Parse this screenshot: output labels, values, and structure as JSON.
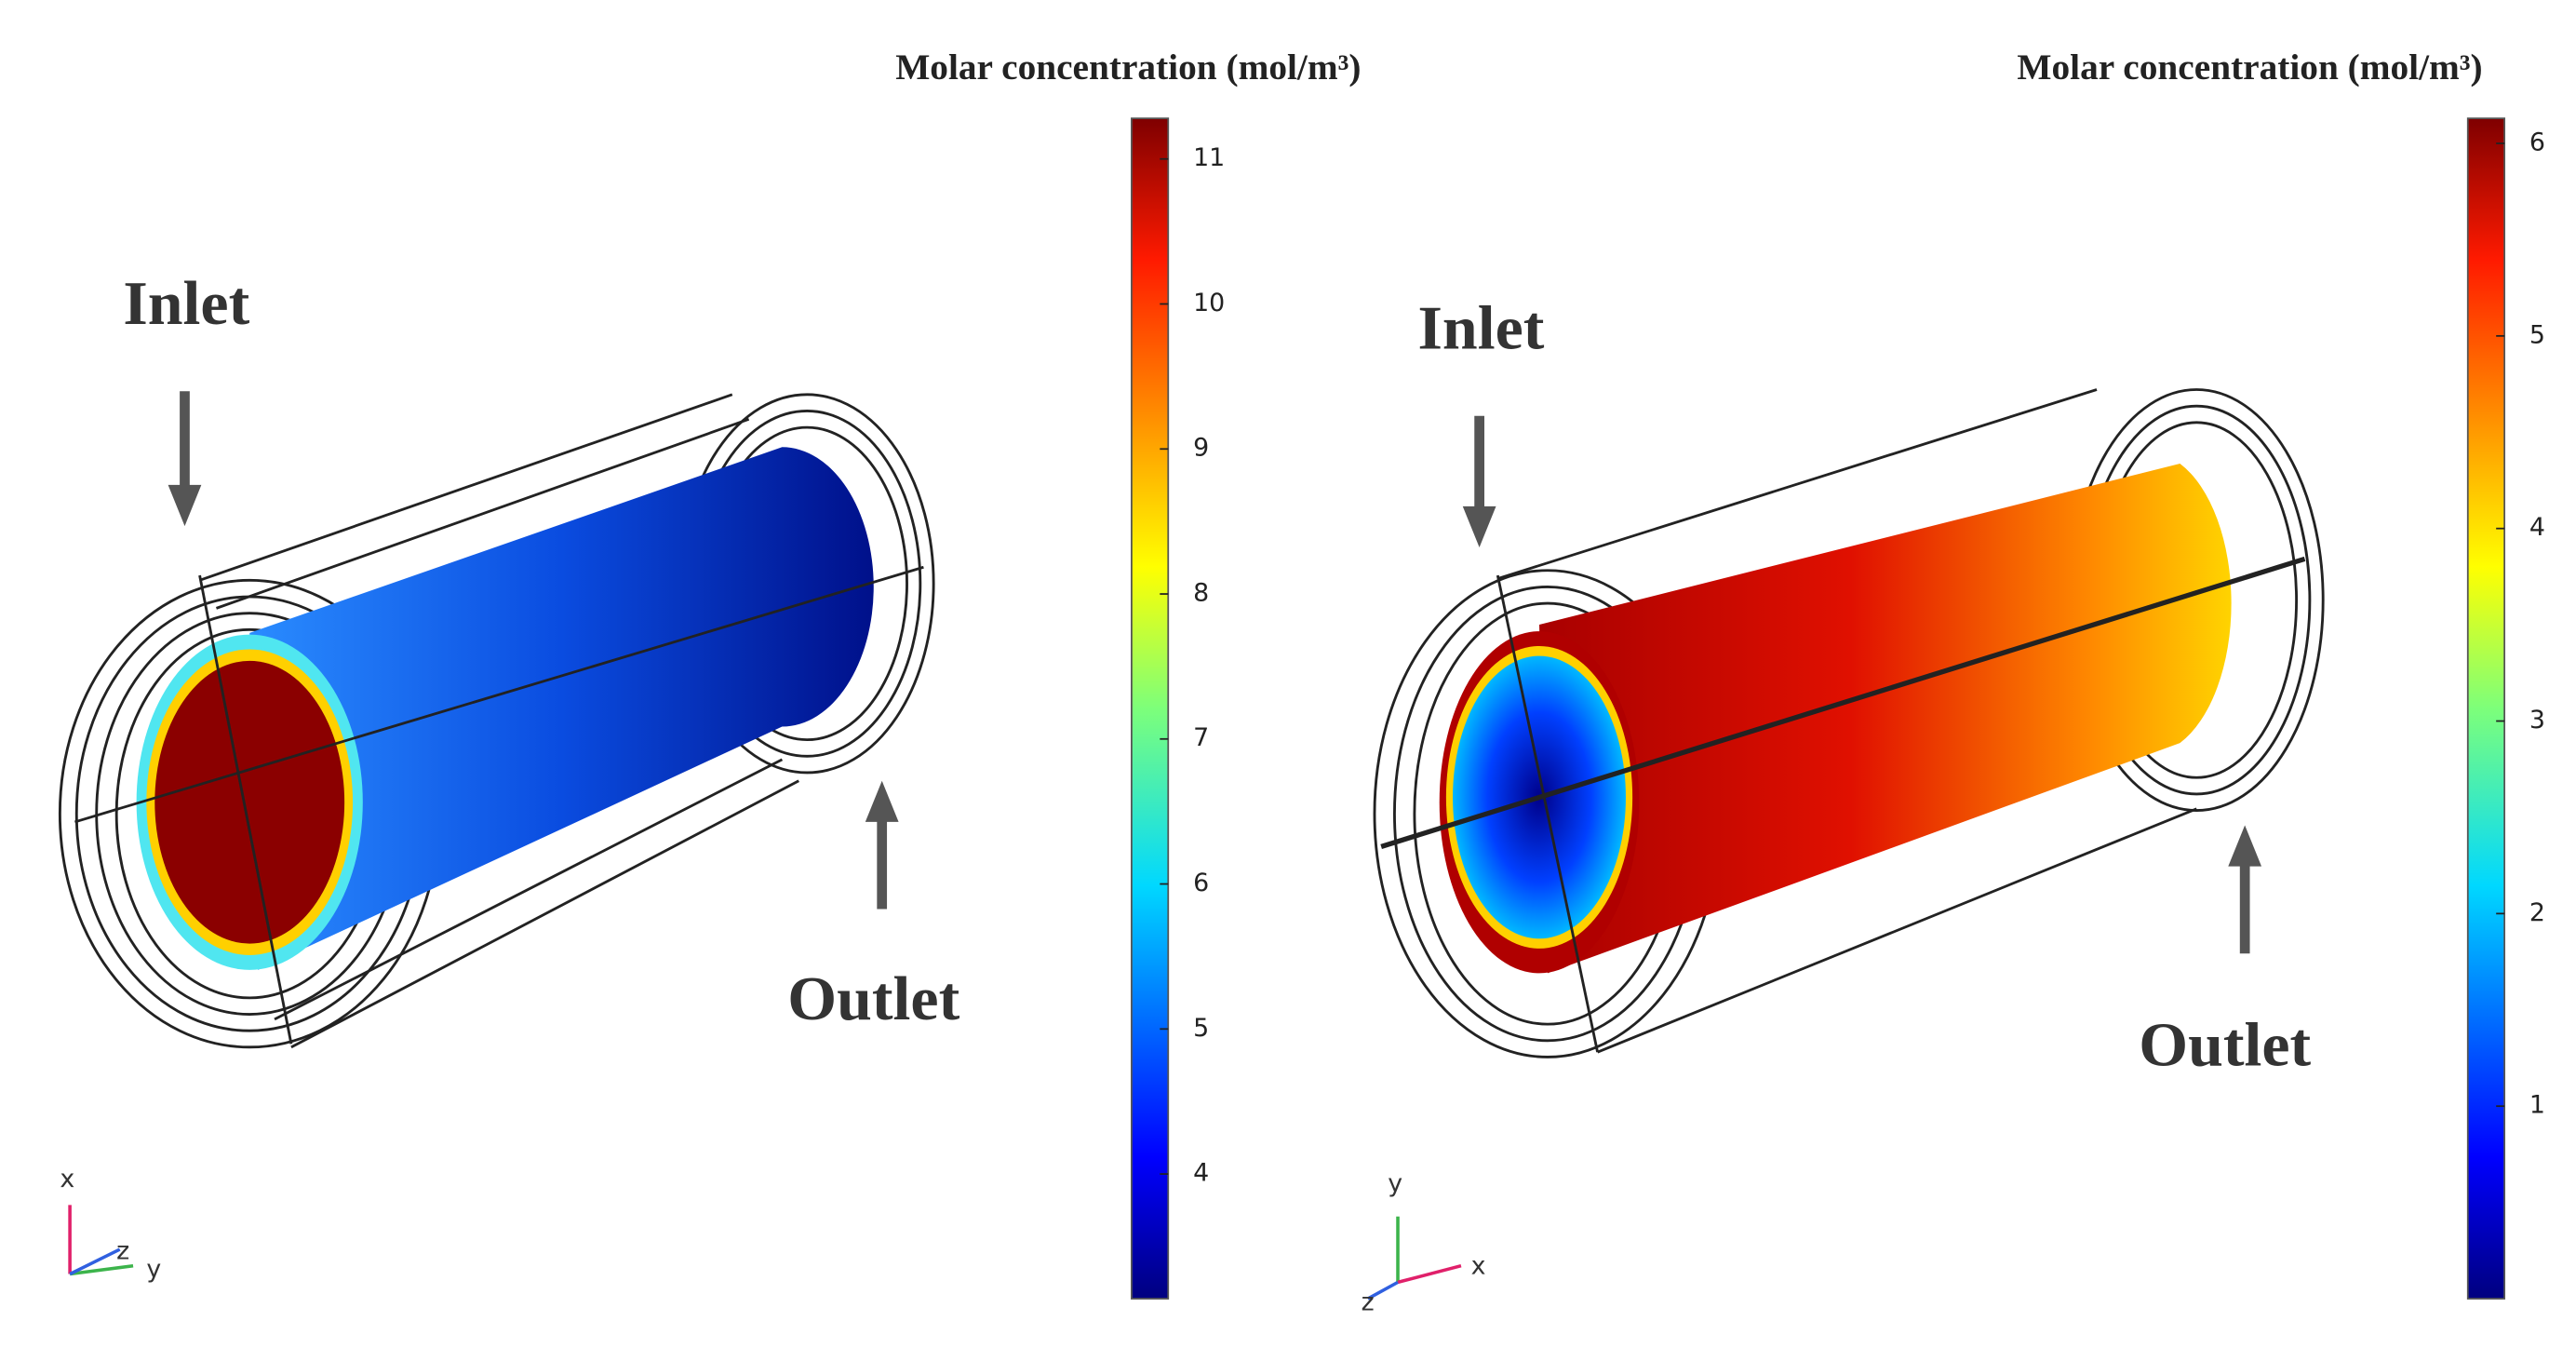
{
  "panels": [
    {
      "title": "Molar concentration (mol/m³)",
      "inlet": "Inlet",
      "outlet": "Outlet",
      "axes": {
        "up": "x",
        "depth": "z",
        "right": "y"
      },
      "colorbar": {
        "lim": [
          3.14,
          11.28
        ],
        "ticks": [
          4,
          5,
          6,
          7,
          8,
          9,
          10,
          11
        ]
      }
    },
    {
      "title": "Molar concentration (mol/m³)",
      "inlet": "Inlet",
      "outlet": "Outlet",
      "axes": {
        "up": "y",
        "depth": "z",
        "right": "x"
      },
      "colorbar": {
        "lim": [
          0,
          6.13
        ],
        "ticks": [
          1,
          2,
          3,
          4,
          5,
          6
        ]
      }
    }
  ]
}
